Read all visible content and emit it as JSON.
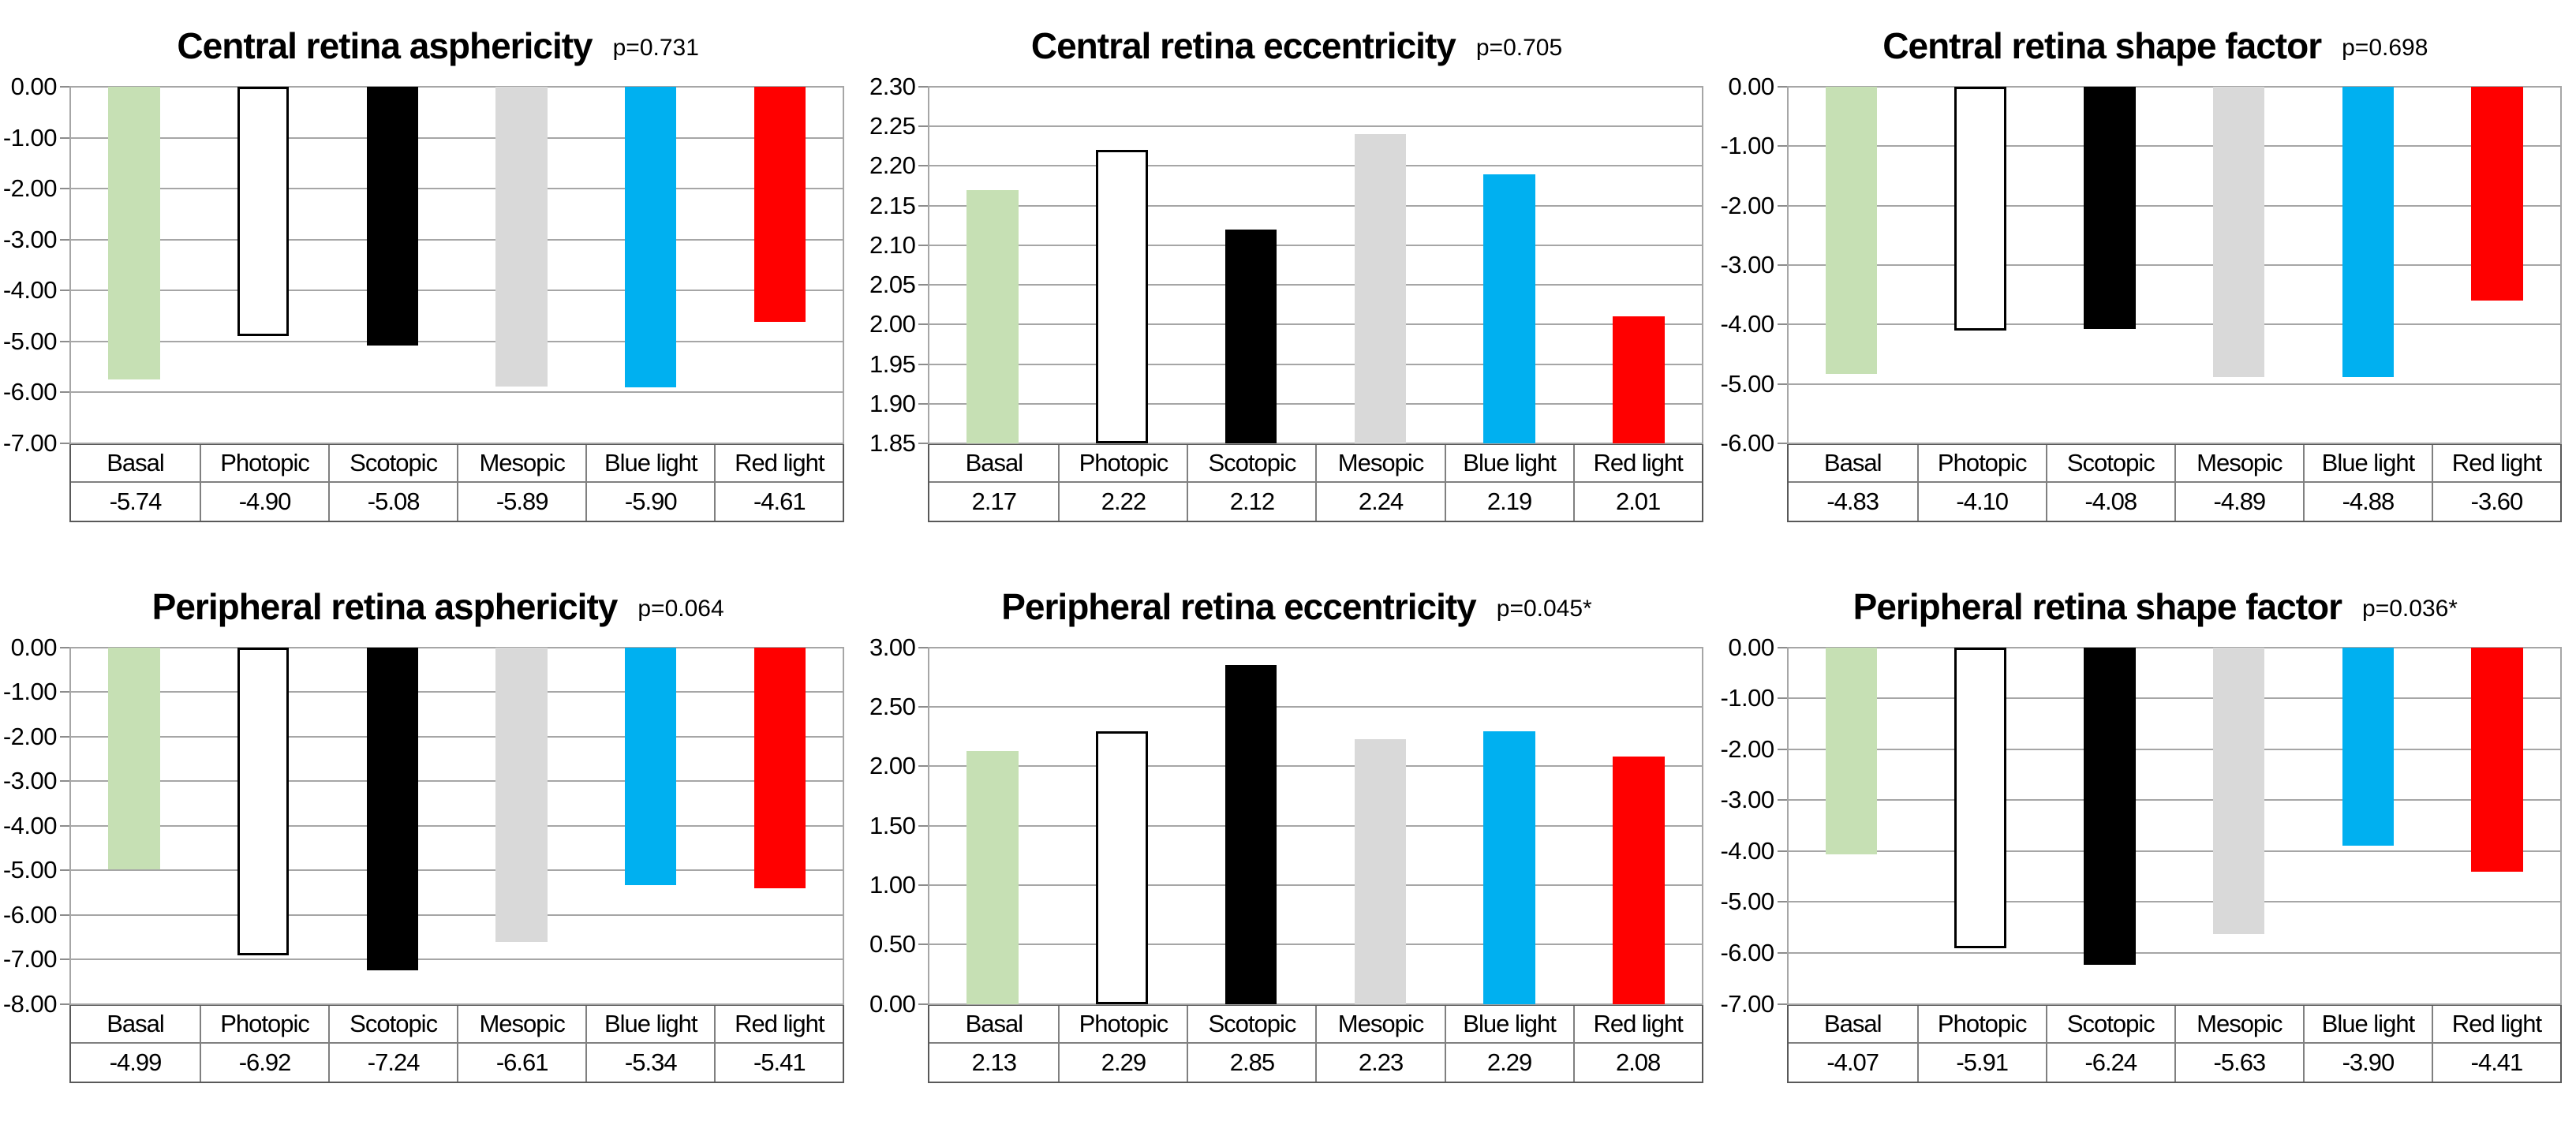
{
  "page": {
    "background": "#ffffff",
    "layout": "3x2 grid of bar charts, each with a category/value table under the plot"
  },
  "palette": {
    "gridline": "#a6a6a6",
    "axis_line": "#a6a6a6",
    "tick_mark": "#8c8c8c",
    "table_outer_border": "#595959",
    "table_inner_border": "#808080",
    "text": "#000000",
    "bar_colors": [
      {
        "category": "Basal",
        "fill": "#c6e0b4",
        "border": "none"
      },
      {
        "category": "Photopic",
        "fill": "#ffffff",
        "border": "#000000"
      },
      {
        "category": "Scotopic",
        "fill": "#000000",
        "border": "none"
      },
      {
        "category": "Mesopic",
        "fill": "#d9d9d9",
        "border": "none"
      },
      {
        "category": "Blue light",
        "fill": "#00b0f0",
        "border": "none"
      },
      {
        "category": "Red light",
        "fill": "#ff0000",
        "border": "none"
      }
    ]
  },
  "chart_data": [
    {
      "type": "bar",
      "title": "Central retina asphericity",
      "p_label": "p=0.731",
      "categories": [
        "Basal",
        "Photopic",
        "Scotopic",
        "Mesopic",
        "Blue light",
        "Red light"
      ],
      "values": [
        -5.74,
        -4.9,
        -5.08,
        -5.89,
        -5.9,
        -4.61
      ],
      "values_display": [
        "-5.74",
        "-4.90",
        "-5.08",
        "-5.89",
        "-5.90",
        "-4.61"
      ],
      "ylim": [
        -7.0,
        0.0
      ],
      "ytick_labels": [
        "0.00",
        "-1.00",
        "-2.00",
        "-3.00",
        "-4.00",
        "-5.00",
        "-6.00",
        "-7.00"
      ],
      "bar_anchor": "top",
      "grid": true,
      "legend": "none",
      "xlabel": "",
      "ylabel": ""
    },
    {
      "type": "bar",
      "title": "Central retina eccentricity",
      "p_label": "p=0.705",
      "categories": [
        "Basal",
        "Photopic",
        "Scotopic",
        "Mesopic",
        "Blue light",
        "Red light"
      ],
      "values": [
        2.17,
        2.22,
        2.12,
        2.24,
        2.19,
        2.01
      ],
      "values_display": [
        "2.17",
        "2.22",
        "2.12",
        "2.24",
        "2.19",
        "2.01"
      ],
      "ylim": [
        1.85,
        2.3
      ],
      "ytick_labels": [
        "2.30",
        "2.25",
        "2.20",
        "2.15",
        "2.10",
        "2.05",
        "2.00",
        "1.95",
        "1.90",
        "1.85"
      ],
      "bar_anchor": "bottom",
      "grid": true,
      "legend": "none",
      "xlabel": "",
      "ylabel": ""
    },
    {
      "type": "bar",
      "title": "Central retina shape factor",
      "p_label": "p=0.698",
      "categories": [
        "Basal",
        "Photopic",
        "Scotopic",
        "Mesopic",
        "Blue light",
        "Red light"
      ],
      "values": [
        -4.83,
        -4.1,
        -4.08,
        -4.89,
        -4.88,
        -3.6
      ],
      "values_display": [
        "-4.83",
        "-4.10",
        "-4.08",
        "-4.89",
        "-4.88",
        "-3.60"
      ],
      "ylim": [
        -6.0,
        0.0
      ],
      "ytick_labels": [
        "0.00",
        "-1.00",
        "-2.00",
        "-3.00",
        "-4.00",
        "-5.00",
        "-6.00"
      ],
      "bar_anchor": "top",
      "grid": true,
      "legend": "none",
      "xlabel": "",
      "ylabel": ""
    },
    {
      "type": "bar",
      "title": "Peripheral retina asphericity",
      "p_label": "p=0.064",
      "categories": [
        "Basal",
        "Photopic",
        "Scotopic",
        "Mesopic",
        "Blue light",
        "Red light"
      ],
      "values": [
        -4.99,
        -6.92,
        -7.24,
        -6.61,
        -5.34,
        -5.41
      ],
      "values_display": [
        "-4.99",
        "-6.92",
        "-7.24",
        "-6.61",
        "-5.34",
        "-5.41"
      ],
      "ylim": [
        -8.0,
        0.0
      ],
      "ytick_labels": [
        "0.00",
        "-1.00",
        "-2.00",
        "-3.00",
        "-4.00",
        "-5.00",
        "-6.00",
        "-7.00",
        "-8.00"
      ],
      "bar_anchor": "top",
      "grid": true,
      "legend": "none",
      "xlabel": "",
      "ylabel": ""
    },
    {
      "type": "bar",
      "title": "Peripheral retina eccentricity",
      "p_label": "p=0.045*",
      "categories": [
        "Basal",
        "Photopic",
        "Scotopic",
        "Mesopic",
        "Blue light",
        "Red light"
      ],
      "values": [
        2.13,
        2.29,
        2.85,
        2.23,
        2.29,
        2.08
      ],
      "values_display": [
        "2.13",
        "2.29",
        "2.85",
        "2.23",
        "2.29",
        "2.08"
      ],
      "ylim": [
        0.0,
        3.0
      ],
      "ytick_labels": [
        "3.00",
        "2.50",
        "2.00",
        "1.50",
        "1.00",
        "0.50",
        "0.00"
      ],
      "bar_anchor": "bottom",
      "grid": true,
      "legend": "none",
      "xlabel": "",
      "ylabel": ""
    },
    {
      "type": "bar",
      "title": "Peripheral retina shape factor",
      "p_label": "p=0.036*",
      "categories": [
        "Basal",
        "Photopic",
        "Scotopic",
        "Mesopic",
        "Blue light",
        "Red light"
      ],
      "values": [
        -4.07,
        -5.91,
        -6.24,
        -5.63,
        -3.9,
        -4.41
      ],
      "values_display": [
        "-4.07",
        "-5.91",
        "-6.24",
        "-5.63",
        "-3.90",
        "-4.41"
      ],
      "ylim": [
        -7.0,
        0.0
      ],
      "ytick_labels": [
        "0.00",
        "-1.00",
        "-2.00",
        "-3.00",
        "-4.00",
        "-5.00",
        "-6.00",
        "-7.00"
      ],
      "bar_anchor": "top",
      "grid": true,
      "legend": "none",
      "xlabel": "",
      "ylabel": ""
    }
  ]
}
